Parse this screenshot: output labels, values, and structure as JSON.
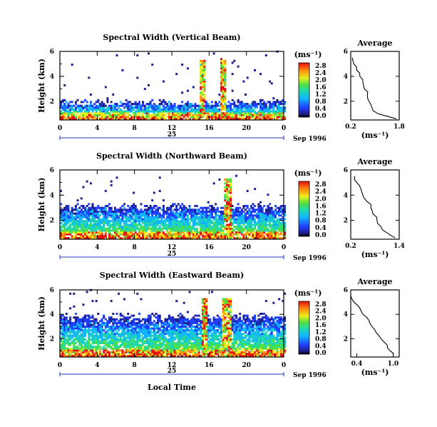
{
  "chart_data": [
    {
      "type": "heatmap",
      "title": "Spectral Width (Vertical Beam)",
      "ylabel": "Height (km)",
      "yticks": [
        "2",
        "4",
        "6"
      ],
      "ylim": [
        0.5,
        6
      ],
      "xlim": [
        0,
        24
      ],
      "xticks": [
        "0",
        "4",
        "8",
        "12",
        "16",
        "20",
        "0"
      ],
      "day_label": "25",
      "date_label": "Sep 1996",
      "colorbar": {
        "unit_label": "(ms⁻¹)",
        "ticks": [
          "0.0",
          "0.4",
          "0.8",
          "1.2",
          "1.6",
          "2.0",
          "2.4",
          "2.8"
        ],
        "range": [
          0,
          2.9
        ]
      },
      "profile": {
        "title": "Average",
        "xlabel": "(ms⁻¹)",
        "xticks": [
          "0.2",
          "1.8"
        ],
        "xlim": [
          0.2,
          1.8
        ],
        "yticks": [
          "2",
          "4",
          "6"
        ],
        "heights": [
          0.6,
          1.0,
          1.5,
          2.0,
          2.5,
          3.0,
          3.5,
          4.0,
          4.5,
          5.0,
          5.5
        ],
        "values": [
          1.7,
          1.1,
          0.9,
          0.8,
          0.75,
          0.65,
          0.6,
          0.5,
          0.4,
          0.3,
          0.25
        ]
      },
      "cloud_top_km": 1.8
    },
    {
      "type": "heatmap",
      "title": "Spectral Width (Northward Beam)",
      "ylabel": "Height (km)",
      "yticks": [
        "2",
        "4",
        "6"
      ],
      "ylim": [
        0.5,
        6
      ],
      "xlim": [
        0,
        24
      ],
      "xticks": [
        "0",
        "4",
        "8",
        "12",
        "16",
        "20",
        "0"
      ],
      "day_label": "25",
      "date_label": "Sep 1996",
      "colorbar": {
        "unit_label": "(ms⁻¹)",
        "ticks": [
          "0.0",
          "0.4",
          "0.8",
          "1.2",
          "1.6",
          "2.0",
          "2.4",
          "2.8"
        ],
        "range": [
          0,
          2.9
        ]
      },
      "profile": {
        "title": "Average",
        "xlabel": "(ms⁻¹)",
        "xticks": [
          "0.2",
          "1.4"
        ],
        "xlim": [
          0.2,
          1.4
        ],
        "yticks": [
          "2",
          "4",
          "6"
        ],
        "heights": [
          0.6,
          1.0,
          1.5,
          2.0,
          2.5,
          3.0,
          3.5,
          4.0,
          4.5,
          5.0,
          5.5
        ],
        "values": [
          1.3,
          1.1,
          0.95,
          0.85,
          0.75,
          0.7,
          0.6,
          0.5,
          0.45,
          0.35,
          0.3
        ]
      },
      "cloud_top_km": 3.0
    },
    {
      "type": "heatmap",
      "title": "Spectral Width (Eastward Beam)",
      "ylabel": "Height (km)",
      "yticks": [
        "2",
        "4",
        "6"
      ],
      "ylim": [
        0.5,
        6
      ],
      "xlim": [
        0,
        24
      ],
      "xticks": [
        "0",
        "4",
        "8",
        "12",
        "16",
        "20",
        "0"
      ],
      "day_label": "25",
      "date_label": "Sep 1996",
      "xlabel": "Local Time",
      "colorbar": {
        "unit_label": "(ms⁻¹)",
        "ticks": [
          "0.0",
          "0.4",
          "0.8",
          "1.2",
          "1.6",
          "2.0",
          "2.4",
          "2.8"
        ],
        "range": [
          0,
          2.9
        ]
      },
      "profile": {
        "title": "Average",
        "xlabel": "(ms⁻¹)",
        "xticks": [
          "0.4",
          "1.0"
        ],
        "xlim": [
          0.3,
          1.1
        ],
        "yticks": [
          "2",
          "4",
          "6"
        ],
        "heights": [
          0.6,
          1.0,
          1.5,
          2.0,
          2.5,
          3.0,
          3.5,
          4.0,
          4.5,
          5.0,
          5.5
        ],
        "values": [
          1.0,
          0.95,
          0.9,
          0.8,
          0.72,
          0.65,
          0.6,
          0.5,
          0.45,
          0.35,
          0.3
        ]
      },
      "cloud_top_km": 3.7
    }
  ]
}
